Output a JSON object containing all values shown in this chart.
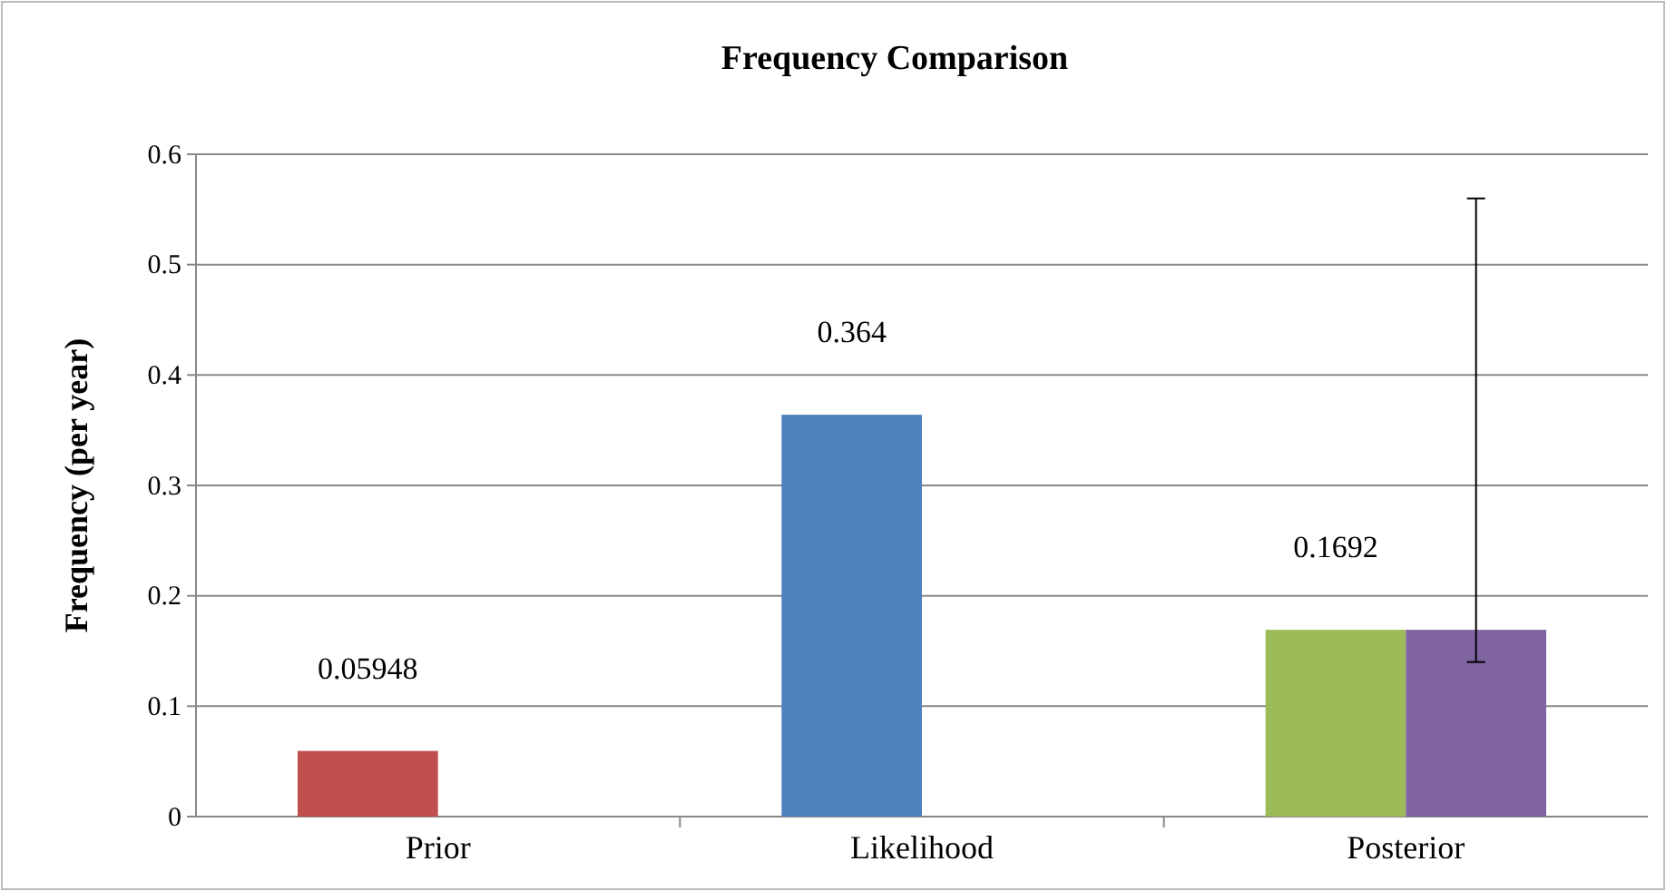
{
  "chart_data": {
    "type": "bar",
    "title": "Frequency Comparison",
    "ylabel": "Frequency (per year)",
    "categories": [
      "Prior",
      "Likelihood",
      "Posterior"
    ],
    "series": [
      {
        "colors": [
          "#c0504d",
          "#4f81bd",
          "#9bbb59"
        ],
        "values": [
          0.05948,
          0.364,
          0.1692
        ],
        "value_labels": [
          "0.05948",
          "0.364",
          "0.1692"
        ]
      },
      {
        "color": "#8064a2",
        "values": [
          null,
          null,
          0.1692
        ],
        "errors": [
          null,
          null,
          [
            0.14,
            0.56
          ]
        ]
      }
    ],
    "ylim": [
      0,
      0.6
    ],
    "yticks": [
      0,
      0.1,
      0.2,
      0.3,
      0.4,
      0.5,
      0.6
    ],
    "grid": "y"
  }
}
